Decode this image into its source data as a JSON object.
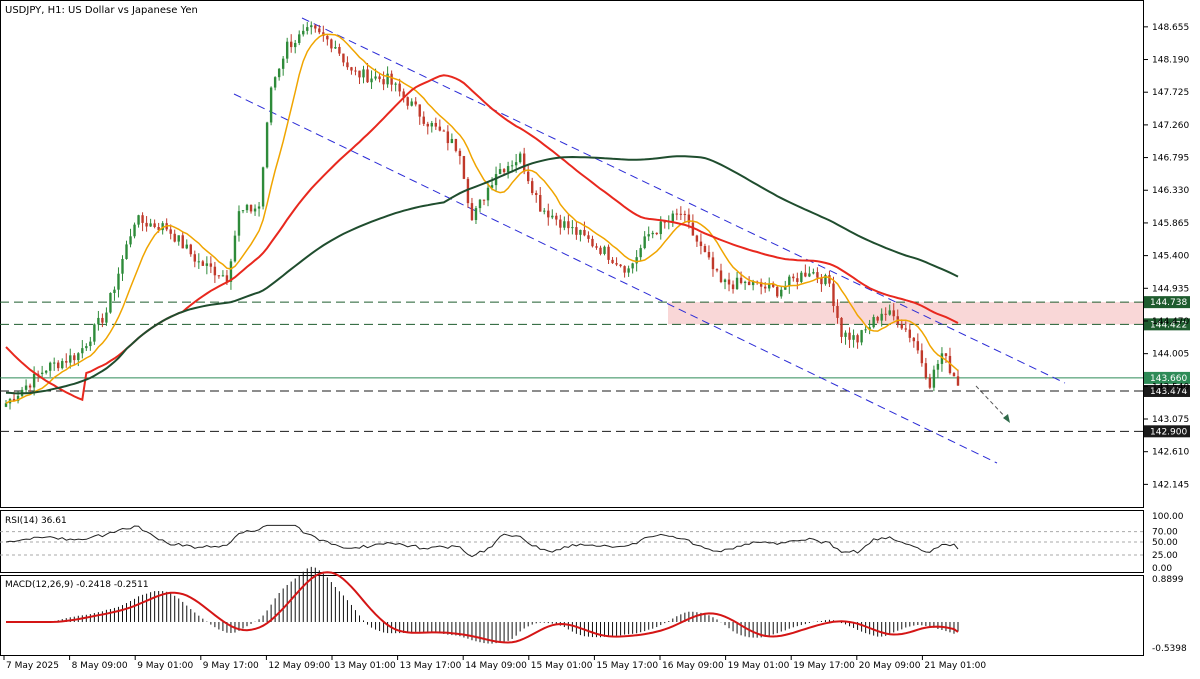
{
  "header": {
    "title": "USDJPY, H1:  US Dollar vs Japanese Yen"
  },
  "price_axis": {
    "ticks": [
      "148.655",
      "148.190",
      "147.725",
      "147.260",
      "146.795",
      "146.330",
      "145.865",
      "145.400",
      "144.935",
      "144.470",
      "144.005",
      "143.540",
      "143.075",
      "142.610",
      "142.145"
    ],
    "range": [
      141.88,
      148.98
    ]
  },
  "level_labels": [
    {
      "value": 144.738,
      "text": "144.738",
      "color": "#1e5c2e"
    },
    {
      "value": 144.422,
      "text": "144.422",
      "color": "#1e5c2e"
    },
    {
      "value": 143.66,
      "text": "143.660",
      "color": "#2e8b57"
    },
    {
      "value": 143.474,
      "text": "143.474",
      "color": "#1a1a1a"
    },
    {
      "value": 142.9,
      "text": "142.900",
      "color": "#1a1a1a"
    }
  ],
  "time_axis": {
    "labels": [
      "7 May 2025",
      "8 May 09:00",
      "9 May 01:00",
      "9 May 17:00",
      "12 May 09:00",
      "13 May 01:00",
      "13 May 17:00",
      "14 May 09:00",
      "15 May 01:00",
      "15 May 17:00",
      "16 May 09:00",
      "19 May 01:00",
      "19 May 17:00",
      "20 May 09:00",
      "21 May 01:00"
    ]
  },
  "rsi": {
    "title": "RSI(14) 36.61",
    "ticks": [
      "100.00",
      "70.00",
      "50.00",
      "25.00",
      "0.00"
    ]
  },
  "macd": {
    "title": "MACD(12,26,9) -0.2418 -0.2511",
    "ticks": [
      "0.8899",
      "-0.5398"
    ]
  },
  "colors": {
    "bull": "#2e8b3a",
    "bear": "#c0392b",
    "ma_fast": "#f0a500",
    "ma_mid": "#e8281e",
    "ma_slow": "#1f4d2e",
    "channel": "#2b2bd6",
    "zone": "#f9d7d7",
    "macd_signal": "#d41515"
  },
  "chart_data": {
    "type": "line",
    "title": "USDJPY, H1:  US Dollar vs Japanese Yen",
    "price_close_key_points": [
      {
        "x": "7 May 2025",
        "y": 143.4
      },
      {
        "x": "8 May 09:00",
        "y": 144.6
      },
      {
        "x": "9 May 01:00",
        "y": 145.9
      },
      {
        "x": "9 May 17:00",
        "y": 145.1
      },
      {
        "x": "12 May 09:00",
        "y": 148.5
      },
      {
        "x": "13 May 01:00",
        "y": 147.9
      },
      {
        "x": "13 May 17:00",
        "y": 147.4
      },
      {
        "x": "14 May 09:00",
        "y": 146.0
      },
      {
        "x": "15 May 01:00",
        "y": 145.9
      },
      {
        "x": "15 May 17:00",
        "y": 145.3
      },
      {
        "x": "16 May 09:00",
        "y": 145.9
      },
      {
        "x": "19 May 01:00",
        "y": 145.0
      },
      {
        "x": "19 May 17:00",
        "y": 144.9
      },
      {
        "x": "20 May 09:00",
        "y": 144.7
      },
      {
        "x": "21 May 01:00",
        "y": 143.7
      }
    ],
    "last_price": 143.66,
    "horizontal_levels": [
      144.738,
      144.422,
      143.474,
      142.9
    ],
    "resistance_zone": [
      144.422,
      144.738
    ],
    "rsi_last": 36.61,
    "macd_main": -0.2418,
    "macd_signal": -0.2511,
    "ylim": [
      141.88,
      148.98
    ]
  }
}
